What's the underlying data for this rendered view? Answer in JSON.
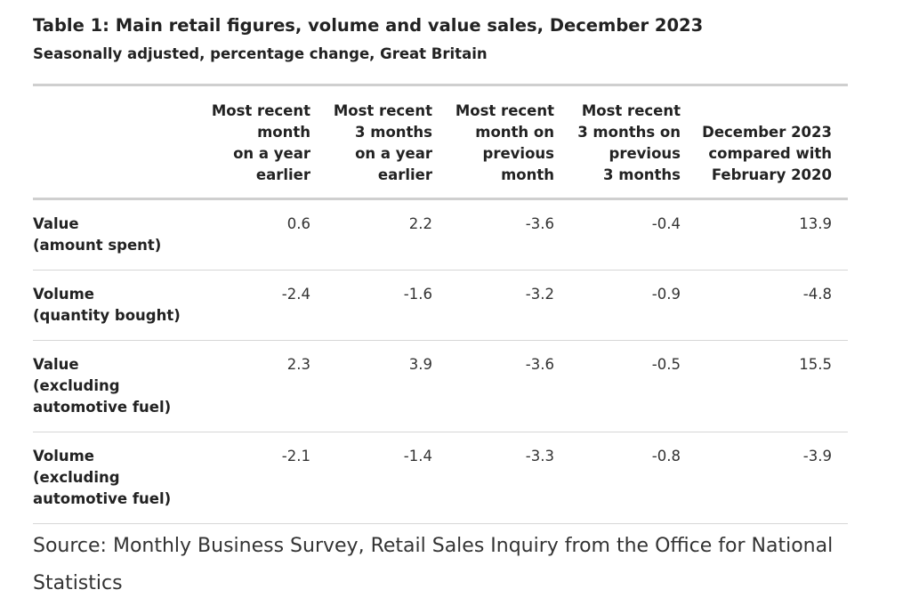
{
  "table": {
    "title": "Table 1: Main retail figures, volume and value sales, December 2023",
    "subtitle": "Seasonally adjusted, percentage change, Great Britain",
    "headers": [
      [
        "Most recent",
        "month",
        "on a year",
        "earlier"
      ],
      [
        "Most recent",
        "3 months",
        "on a year",
        "earlier"
      ],
      [
        "Most recent",
        "month on",
        "previous",
        "month"
      ],
      [
        "Most recent",
        "3 months on",
        "previous",
        "3 months"
      ],
      [
        "December 2023",
        "compared with",
        "February 2020"
      ]
    ],
    "rows": [
      {
        "label": [
          "Value",
          "(amount spent)"
        ],
        "values": [
          "0.6",
          "2.2",
          "-3.6",
          "-0.4",
          "13.9"
        ]
      },
      {
        "label": [
          "Volume",
          "(quantity bought)"
        ],
        "values": [
          "-2.4",
          "-1.6",
          "-3.2",
          "-0.9",
          "-4.8"
        ]
      },
      {
        "label": [
          "Value",
          "(excluding",
          "automotive fuel)"
        ],
        "values": [
          "2.3",
          "3.9",
          "-3.6",
          "-0.5",
          "15.5"
        ]
      },
      {
        "label": [
          "Volume",
          "(excluding",
          "automotive fuel)"
        ],
        "values": [
          "-2.1",
          "-1.4",
          "-3.3",
          "-0.8",
          "-3.9"
        ]
      }
    ],
    "source": "Source: Monthly Business Survey, Retail Sales Inquiry from the Office for National Statistics"
  }
}
